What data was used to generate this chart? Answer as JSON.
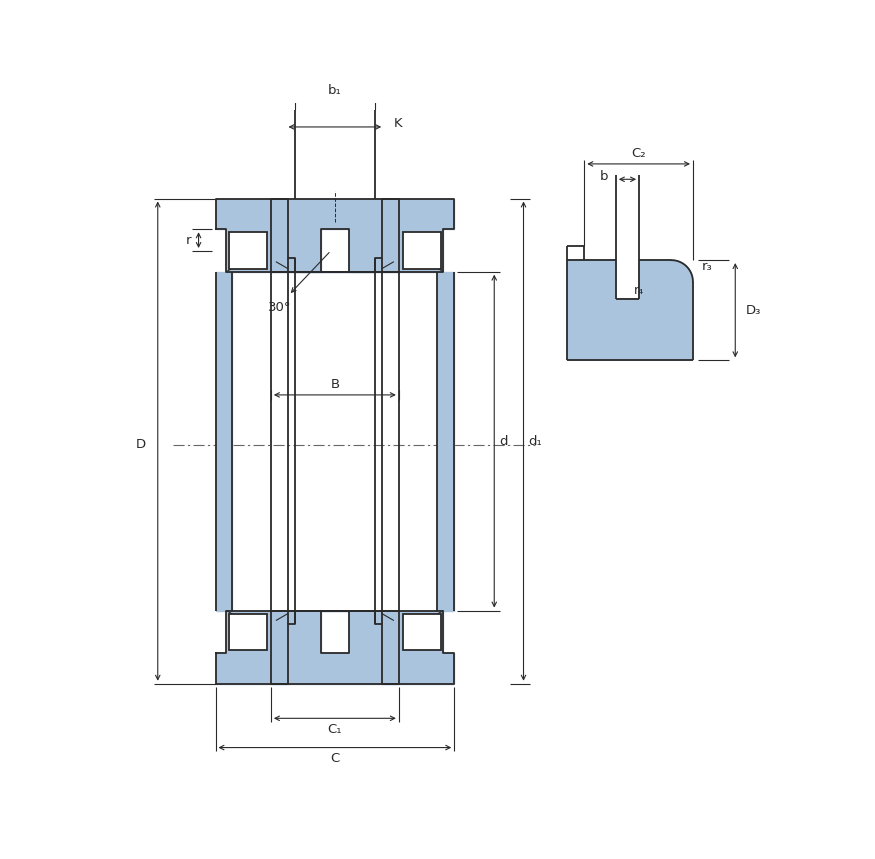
{
  "bg_color": "#ffffff",
  "blue_fill": "#aac4de",
  "line_color": "#2a2a2a",
  "figsize": [
    8.75,
    8.59
  ],
  "dpi": 100,
  "labels": {
    "b1": "b₁",
    "K": "K",
    "B": "B",
    "D": "D",
    "d": "d",
    "d1": "d₁",
    "r": "r",
    "C1": "C₁",
    "C": "C",
    "C2": "C₂",
    "b": "b",
    "r4": "r₄",
    "r3": "r₃",
    "D3": "D₃",
    "angle": "30°"
  }
}
